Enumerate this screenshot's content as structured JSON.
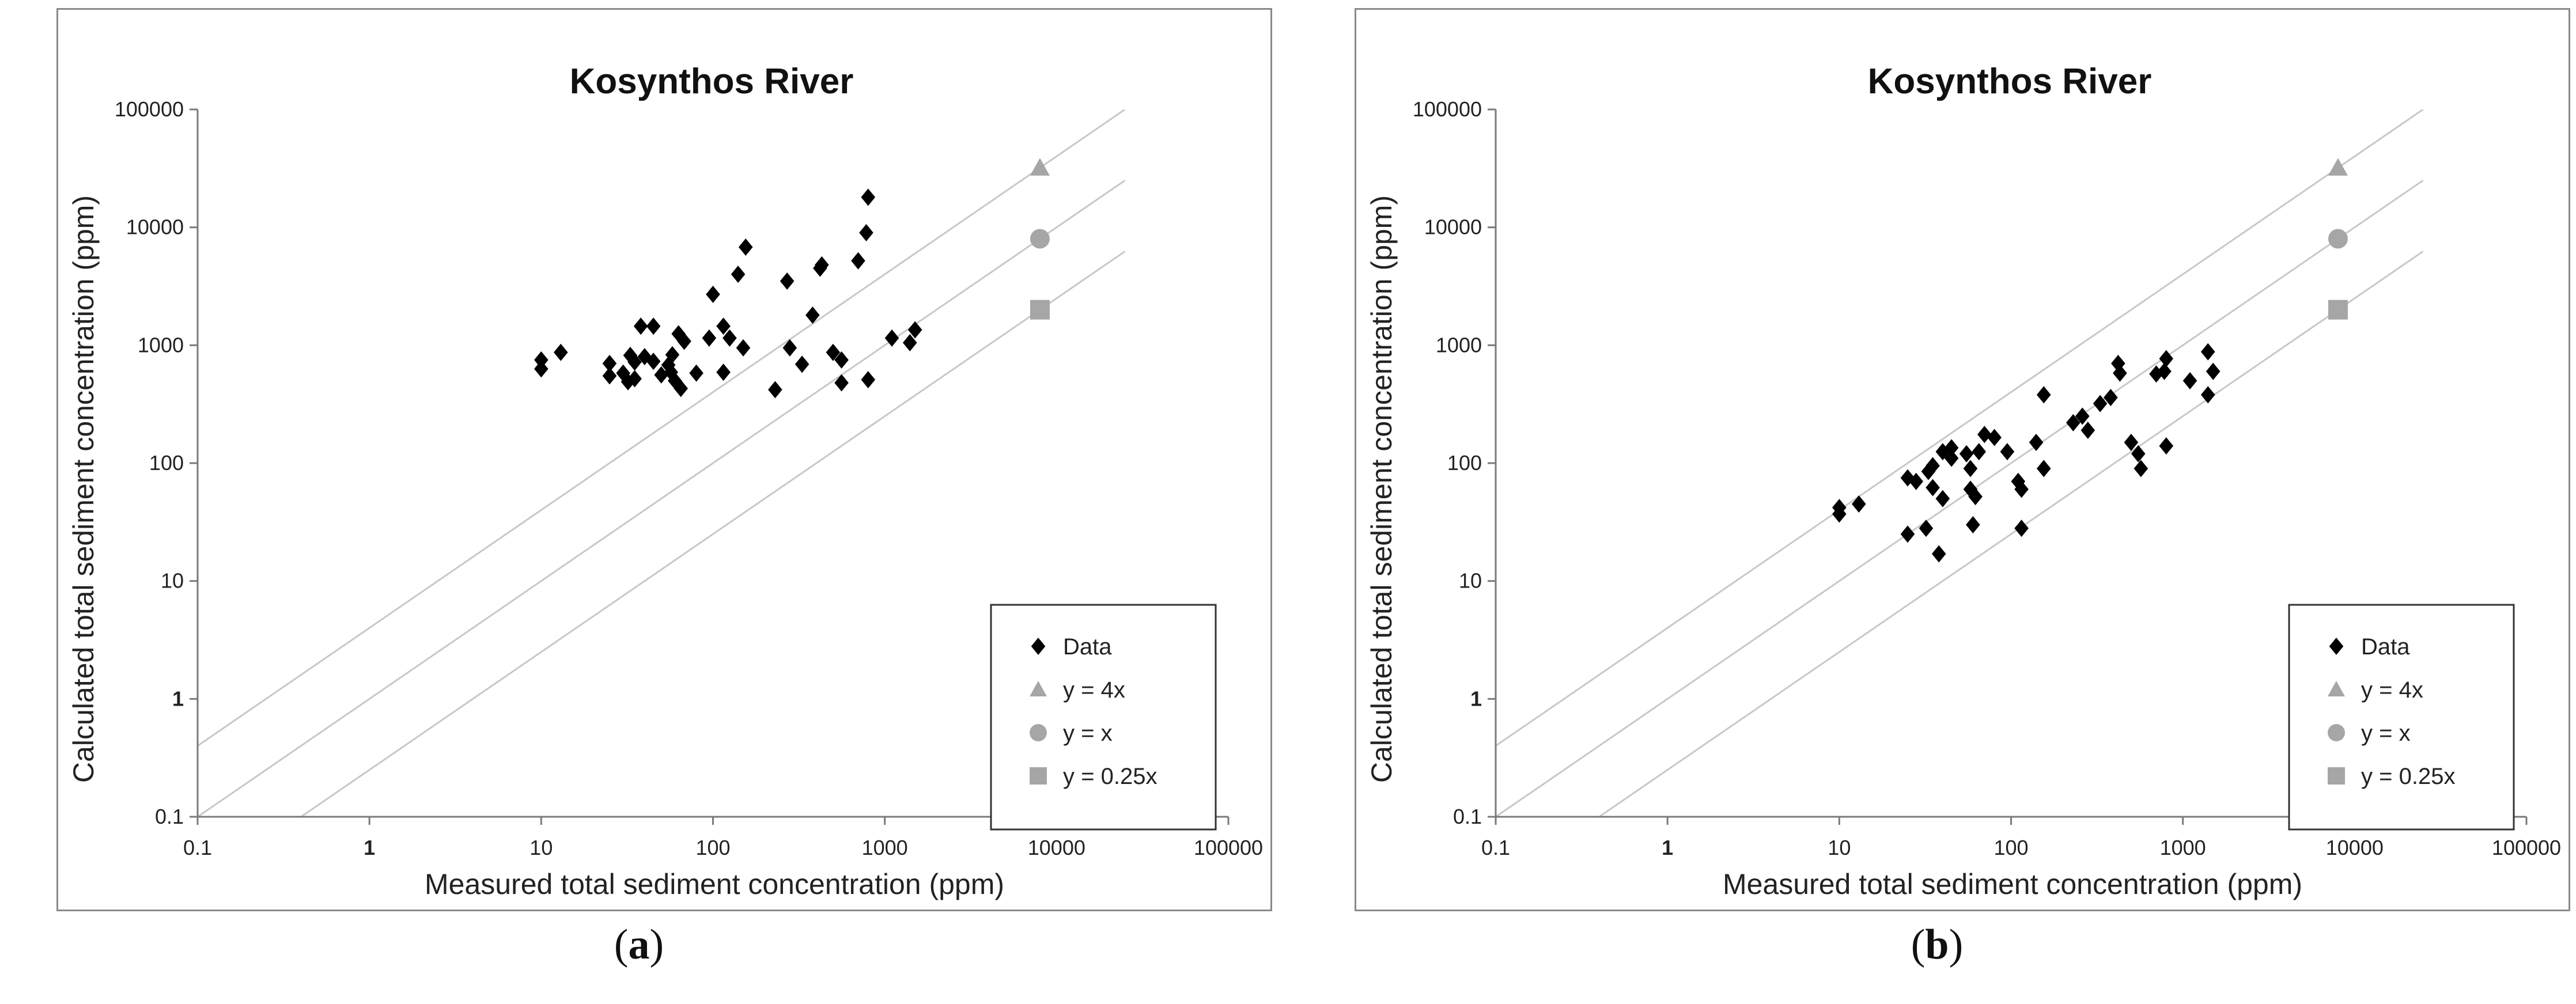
{
  "panels": [
    {
      "id": "a",
      "label_open": "(",
      "label_letter": "a",
      "label_close": ")"
    },
    {
      "id": "b",
      "label_open": "(",
      "label_letter": "b",
      "label_close": ")"
    }
  ],
  "colors": {
    "data": "#000000",
    "reference": "#a6a6a6",
    "guide": "#c8c8c8",
    "frame": "#8a8a8a"
  },
  "chart_data": [
    {
      "type": "scatter",
      "title": "Kosynthos River",
      "xlabel": "Measured total sediment concentration (ppm)",
      "ylabel": "Calculated total sediment concentration (ppm)",
      "xscale": "log",
      "yscale": "log",
      "xlim": [
        0.1,
        100000
      ],
      "ylim": [
        0.1,
        100000
      ],
      "xticks": [
        "0.1",
        "1",
        "10",
        "100",
        "1000",
        "10000",
        "100000"
      ],
      "yticks": [
        "0.1",
        "1",
        "10",
        "100",
        "1000",
        "10000",
        "100000"
      ],
      "legend_position": "bottom-right",
      "series": [
        {
          "name": "Data",
          "marker": "diamond",
          "color": "#000000",
          "points": [
            [
              10,
              750
            ],
            [
              10,
              630
            ],
            [
              13,
              870
            ],
            [
              25,
              700
            ],
            [
              25,
              550
            ],
            [
              30,
              580
            ],
            [
              32,
              490
            ],
            [
              33,
              820
            ],
            [
              35,
              720
            ],
            [
              35,
              520
            ],
            [
              38,
              1450
            ],
            [
              40,
              800
            ],
            [
              45,
              1450
            ],
            [
              45,
              730
            ],
            [
              50,
              560
            ],
            [
              55,
              680
            ],
            [
              57,
              590
            ],
            [
              58,
              830
            ],
            [
              60,
              500
            ],
            [
              63,
              1250
            ],
            [
              65,
              430
            ],
            [
              68,
              1080
            ],
            [
              80,
              580
            ],
            [
              95,
              1150
            ],
            [
              100,
              2700
            ],
            [
              115,
              590
            ],
            [
              115,
              1450
            ],
            [
              125,
              1150
            ],
            [
              150,
              950
            ],
            [
              155,
              6800
            ],
            [
              140,
              4000
            ],
            [
              230,
              420
            ],
            [
              270,
              3500
            ],
            [
              280,
              950
            ],
            [
              330,
              690
            ],
            [
              380,
              1800
            ],
            [
              420,
              4500
            ],
            [
              430,
              4800
            ],
            [
              500,
              870
            ],
            [
              560,
              750
            ],
            [
              560,
              480
            ],
            [
              700,
              5200
            ],
            [
              780,
              9000
            ],
            [
              800,
              18000
            ],
            [
              800,
              510
            ],
            [
              1100,
              1150
            ],
            [
              1400,
              1050
            ],
            [
              1500,
              1350
            ]
          ]
        },
        {
          "name": "y = 4x",
          "marker": "triangle",
          "color": "#a6a6a6",
          "points": [
            [
              8000,
              32000
            ]
          ]
        },
        {
          "name": "y = x",
          "marker": "circle",
          "color": "#a6a6a6",
          "points": [
            [
              8000,
              8000
            ]
          ]
        },
        {
          "name": "y = 0.25x",
          "marker": "square",
          "color": "#a6a6a6",
          "points": [
            [
              8000,
              2000
            ]
          ]
        }
      ],
      "reference_lines": [
        {
          "slope": 4
        },
        {
          "slope": 1
        },
        {
          "slope": 0.25
        }
      ]
    },
    {
      "type": "scatter",
      "title": "Kosynthos River",
      "xlabel": "Measured total sediment concentration (ppm)",
      "ylabel": "Calculated total sediment concentration (ppm)",
      "xscale": "log",
      "yscale": "log",
      "xlim": [
        0.1,
        100000
      ],
      "ylim": [
        0.1,
        100000
      ],
      "xticks": [
        "0.1",
        "1",
        "10",
        "100",
        "1000",
        "10000",
        "100000"
      ],
      "yticks": [
        "0.1",
        "1",
        "10",
        "100",
        "1000",
        "10000",
        "100000"
      ],
      "legend_position": "bottom-right",
      "series": [
        {
          "name": "Data",
          "marker": "diamond",
          "color": "#000000",
          "points": [
            [
              10,
              42
            ],
            [
              10,
              37
            ],
            [
              13,
              45
            ],
            [
              25,
              75
            ],
            [
              25,
              25
            ],
            [
              28,
              70
            ],
            [
              32,
              28
            ],
            [
              33,
              85
            ],
            [
              35,
              95
            ],
            [
              35,
              62
            ],
            [
              38,
              17
            ],
            [
              40,
              125
            ],
            [
              40,
              50
            ],
            [
              45,
              110
            ],
            [
              45,
              135
            ],
            [
              55,
              120
            ],
            [
              58,
              60
            ],
            [
              58,
              90
            ],
            [
              60,
              30
            ],
            [
              62,
              52
            ],
            [
              65,
              125
            ],
            [
              70,
              175
            ],
            [
              80,
              165
            ],
            [
              95,
              125
            ],
            [
              110,
              70
            ],
            [
              115,
              60
            ],
            [
              115,
              28
            ],
            [
              140,
              150
            ],
            [
              155,
              90
            ],
            [
              155,
              380
            ],
            [
              230,
              220
            ],
            [
              260,
              250
            ],
            [
              280,
              190
            ],
            [
              330,
              320
            ],
            [
              380,
              360
            ],
            [
              420,
              700
            ],
            [
              430,
              580
            ],
            [
              500,
              150
            ],
            [
              550,
              120
            ],
            [
              570,
              90
            ],
            [
              700,
              570
            ],
            [
              780,
              600
            ],
            [
              800,
              770
            ],
            [
              800,
              140
            ],
            [
              1100,
              500
            ],
            [
              1400,
              380
            ],
            [
              1400,
              880
            ],
            [
              1500,
              600
            ]
          ]
        },
        {
          "name": "y = 4x",
          "marker": "triangle",
          "color": "#a6a6a6",
          "points": [
            [
              8000,
              32000
            ]
          ]
        },
        {
          "name": "y = x",
          "marker": "circle",
          "color": "#a6a6a6",
          "points": [
            [
              8000,
              8000
            ]
          ]
        },
        {
          "name": "y = 0.25x",
          "marker": "square",
          "color": "#a6a6a6",
          "points": [
            [
              8000,
              2000
            ]
          ]
        }
      ],
      "reference_lines": [
        {
          "slope": 4
        },
        {
          "slope": 1
        },
        {
          "slope": 0.25
        }
      ]
    }
  ]
}
